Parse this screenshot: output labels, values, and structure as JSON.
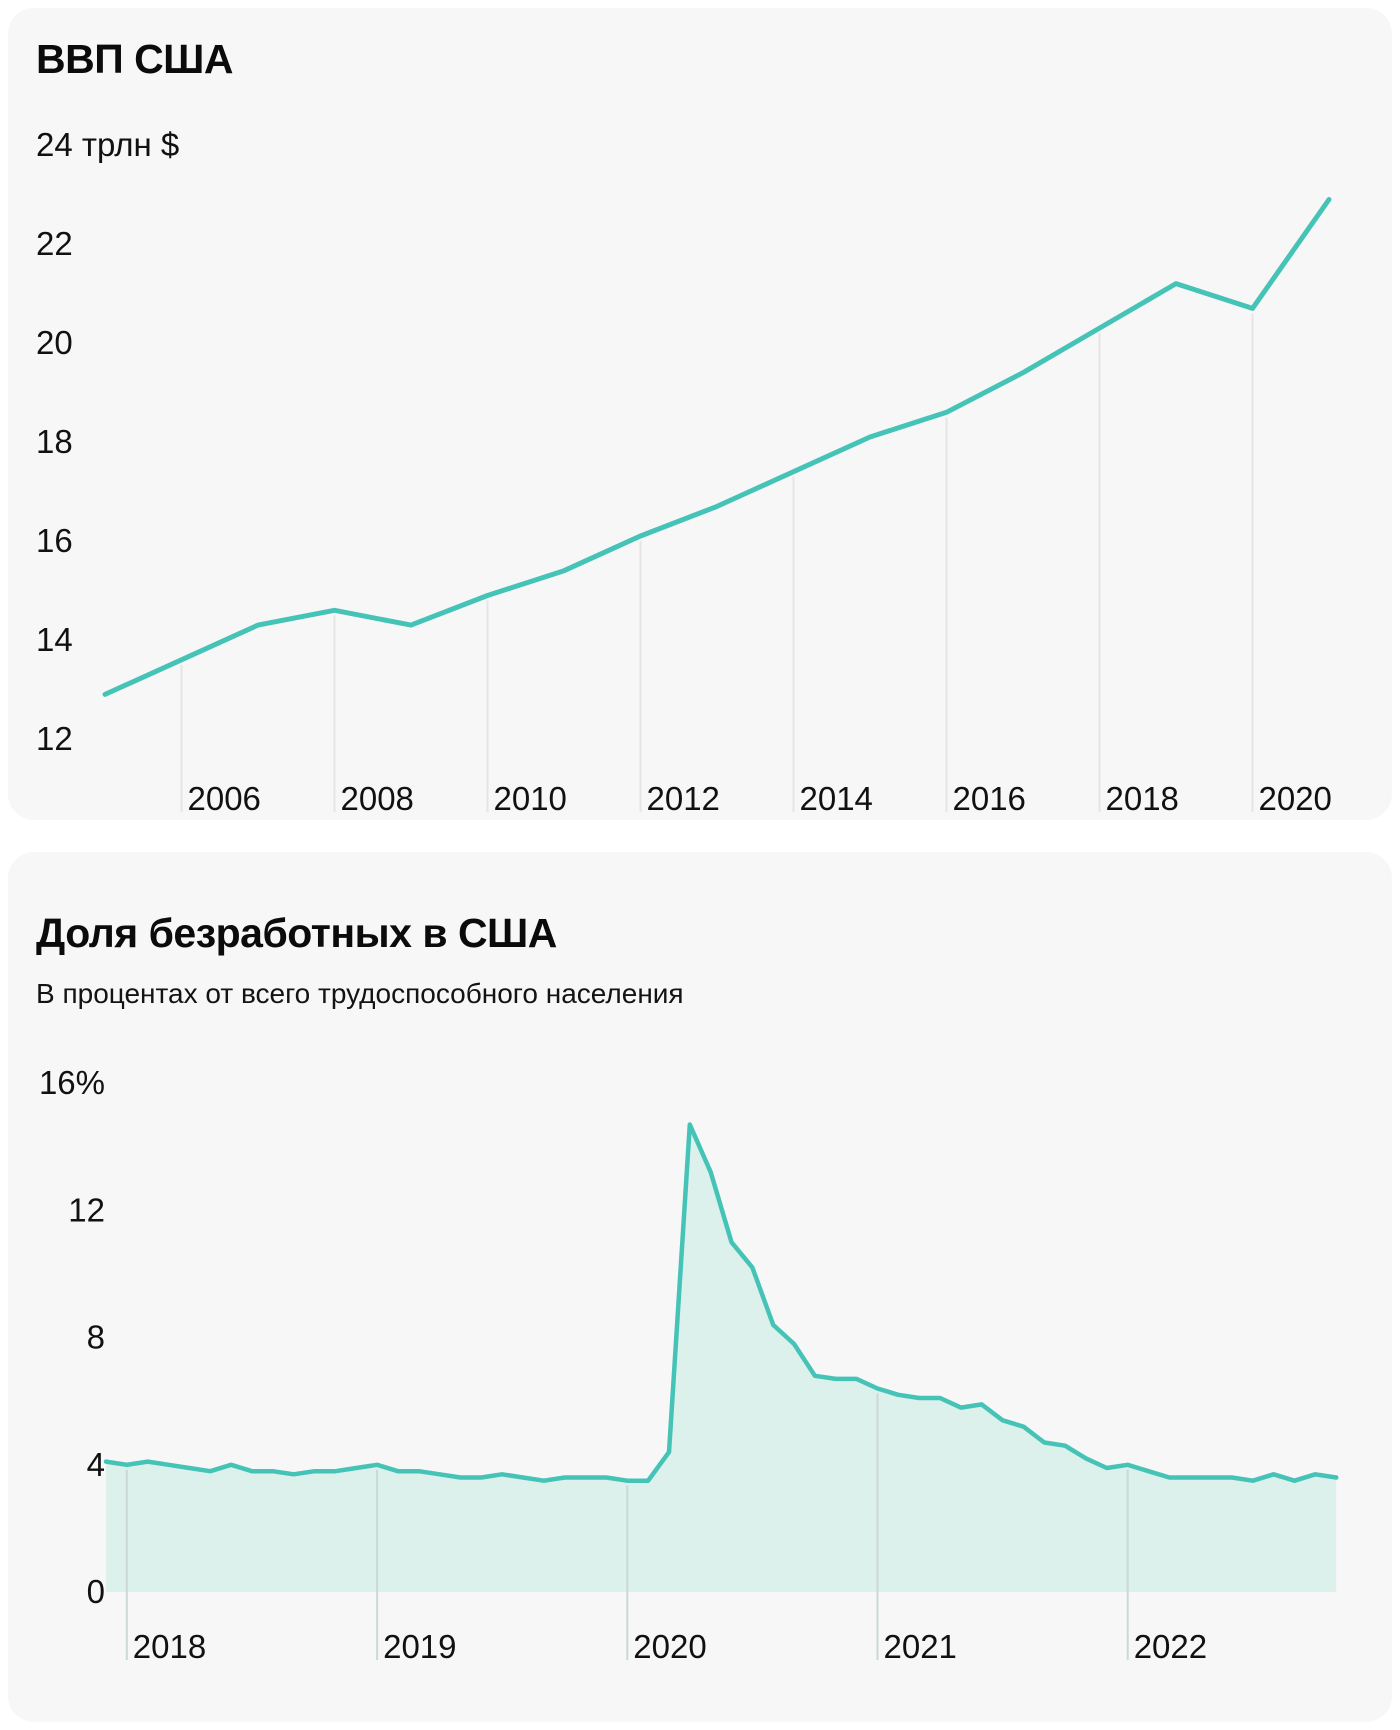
{
  "page": {
    "background": "#ffffff",
    "card_background": "#F7F7F8"
  },
  "colors": {
    "accent_line": "#46C3B7",
    "area_fill": "#DCF0EC",
    "grid_top_chart": "#E5E5E5",
    "grid_bottom_chart": "#CBD9D5",
    "text": "#111111"
  },
  "chart_data": [
    {
      "type": "line",
      "title": "ВВП США",
      "ylabel": "трлн $",
      "x": [
        2005,
        2006,
        2007,
        2008,
        2009,
        2010,
        2011,
        2012,
        2013,
        2014,
        2015,
        2016,
        2017,
        2018,
        2019,
        2020,
        2021
      ],
      "values": [
        12.9,
        13.6,
        14.3,
        14.6,
        14.3,
        14.9,
        15.4,
        16.1,
        16.7,
        17.4,
        18.1,
        18.6,
        19.4,
        20.3,
        21.2,
        20.7,
        22.9
      ],
      "ylim": [
        12,
        24
      ],
      "y_ticks": [
        {
          "value": 24,
          "label": "24 трлн $"
        },
        {
          "value": 22,
          "label": "22"
        },
        {
          "value": 20,
          "label": "20"
        },
        {
          "value": 18,
          "label": "18"
        },
        {
          "value": 16,
          "label": "16"
        },
        {
          "value": 14,
          "label": "14"
        },
        {
          "value": 12,
          "label": "12"
        }
      ],
      "x_ticks": [
        2006,
        2008,
        2010,
        2012,
        2014,
        2016,
        2018,
        2020
      ],
      "grid": "vertical",
      "legend": "none"
    },
    {
      "type": "area",
      "title": "Доля безработных в США",
      "subtitle": "В процентах от всего трудоспособного населения",
      "start": "2017-12",
      "frequency": "monthly",
      "values": [
        4.1,
        4.0,
        4.1,
        4.0,
        3.9,
        3.8,
        4.0,
        3.8,
        3.8,
        3.7,
        3.8,
        3.8,
        3.9,
        4.0,
        3.8,
        3.8,
        3.7,
        3.6,
        3.6,
        3.7,
        3.6,
        3.5,
        3.6,
        3.6,
        3.6,
        3.5,
        3.5,
        4.4,
        14.7,
        13.2,
        11.0,
        10.2,
        8.4,
        7.8,
        6.8,
        6.7,
        6.7,
        6.4,
        6.2,
        6.1,
        6.1,
        5.8,
        5.9,
        5.4,
        5.2,
        4.7,
        4.6,
        4.2,
        3.9,
        4.0,
        3.8,
        3.6,
        3.6,
        3.6,
        3.6,
        3.5,
        3.7,
        3.5,
        3.7,
        3.6
      ],
      "ylim": [
        0,
        16
      ],
      "y_ticks": [
        {
          "value": 16,
          "label": "16%"
        },
        {
          "value": 12,
          "label": "12"
        },
        {
          "value": 8,
          "label": "8"
        },
        {
          "value": 4,
          "label": "4"
        },
        {
          "value": 0,
          "label": "0"
        }
      ],
      "x_ticks": [
        2018,
        2019,
        2020,
        2021,
        2022
      ],
      "grid": "vertical",
      "legend": "none"
    }
  ]
}
